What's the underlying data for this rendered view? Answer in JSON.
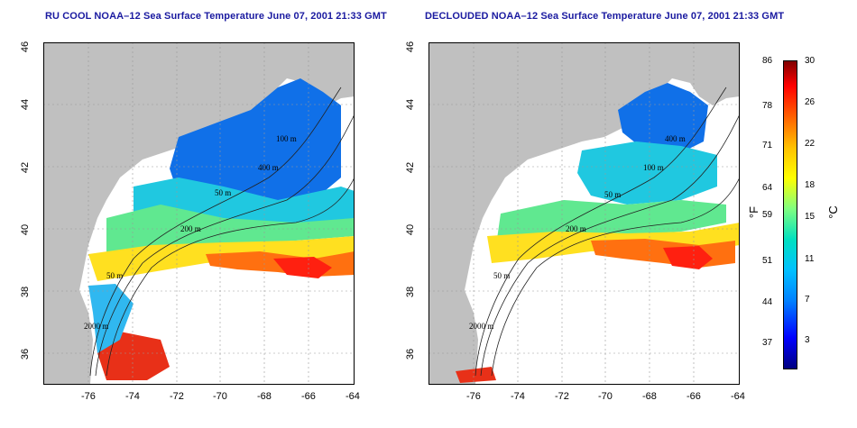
{
  "left_panel": {
    "title": "RU COOL NOAA–12 Sea Surface Temperature June 07, 2001 21:33 GMT"
  },
  "right_panel": {
    "title": "DECLOUDED NOAA–12 Sea Surface Temperature June 07, 2001 21:33 GMT"
  },
  "axes": {
    "x_ticks": [
      "-76",
      "-74",
      "-72",
      "-70",
      "-68",
      "-66",
      "-64"
    ],
    "y_ticks": [
      "46",
      "44",
      "42",
      "40",
      "38",
      "36"
    ]
  },
  "contours": {
    "labels_left": [
      "100 m",
      "400 m",
      "50 m",
      "200 m",
      "50 m",
      "2000 m"
    ],
    "labels_right": [
      "400 m",
      "100 m",
      "50 m",
      "200 m",
      "50 m",
      "2000 m"
    ]
  },
  "colorbar": {
    "fahrenheit_label": "°F",
    "celsius_label": "°C",
    "fahrenheit_ticks": [
      "86",
      "78",
      "71",
      "64",
      "59",
      "51",
      "44",
      "37"
    ],
    "celsius_ticks": [
      "30",
      "26",
      "22",
      "18",
      "15",
      "11",
      "7",
      "3"
    ]
  },
  "colors": {
    "land": "#c0c0c0",
    "cloud_white": "#ffffff",
    "title": "#1a1aa0",
    "scale": [
      "#000080",
      "#0000ff",
      "#0080ff",
      "#00c0ff",
      "#00e0c0",
      "#80ff80",
      "#ffff00",
      "#ffc000",
      "#ff6000",
      "#ff0000",
      "#800000"
    ]
  }
}
